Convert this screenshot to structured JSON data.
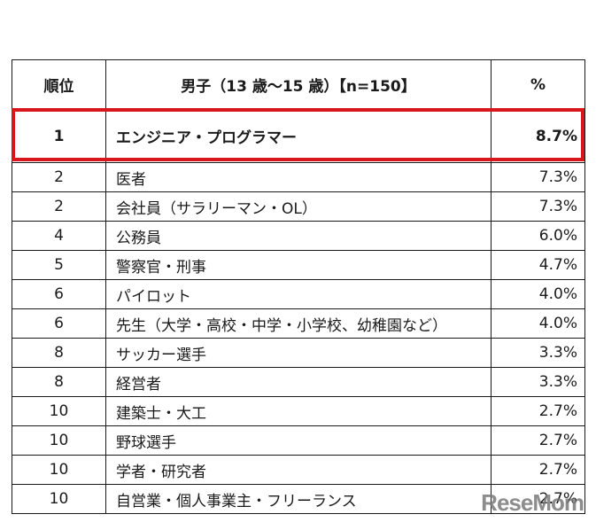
{
  "table": {
    "headers": {
      "rank": "順位",
      "job": "男子（13 歳～15 歳）【n=150】",
      "pct": "%"
    },
    "rows": [
      {
        "rank": "1",
        "job": "エンジニア・プログラマー",
        "pct": "8.7%"
      },
      {
        "rank": "2",
        "job": "医者",
        "pct": "7.3%"
      },
      {
        "rank": "2",
        "job": "会社員（サラリーマン・OL）",
        "pct": "7.3%"
      },
      {
        "rank": "4",
        "job": "公務員",
        "pct": "6.0%"
      },
      {
        "rank": "5",
        "job": "警察官・刑事",
        "pct": "4.7%"
      },
      {
        "rank": "6",
        "job": "パイロット",
        "pct": "4.0%"
      },
      {
        "rank": "6",
        "job": "先生（大学・高校・中学・小学校、幼稚園など）",
        "pct": "4.0%"
      },
      {
        "rank": "8",
        "job": "サッカー選手",
        "pct": "3.3%"
      },
      {
        "rank": "8",
        "job": "経営者",
        "pct": "3.3%"
      },
      {
        "rank": "10",
        "job": "建築士・大工",
        "pct": "2.7%"
      },
      {
        "rank": "10",
        "job": "野球選手",
        "pct": "2.7%"
      },
      {
        "rank": "10",
        "job": "学者・研究者",
        "pct": "2.7%"
      },
      {
        "rank": "10",
        "job": "自営業・個人事業主・フリーランス",
        "pct": "2.7%"
      }
    ]
  },
  "highlight_color": "#d9161c",
  "watermark": "ReseMom"
}
